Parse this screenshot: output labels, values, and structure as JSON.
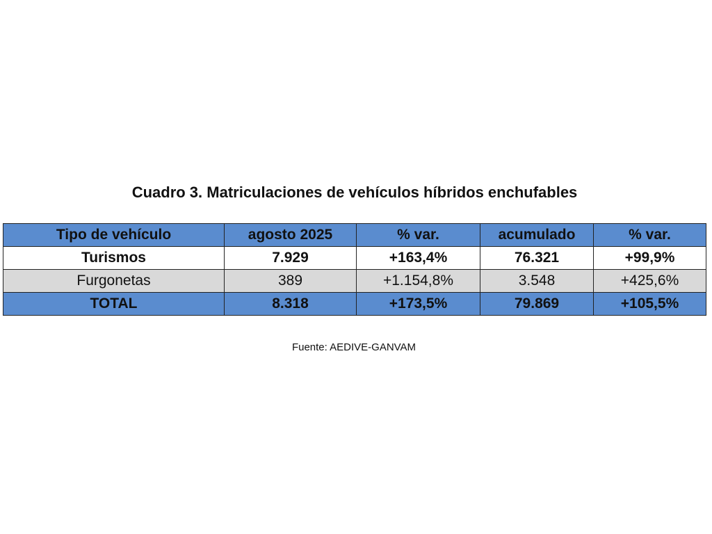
{
  "title": "Cuadro 3. Matriculaciones de vehículos híbridos enchufables",
  "table": {
    "header": [
      "Tipo de vehículo",
      "agosto 2025",
      "% var.",
      "acumulado",
      "% var."
    ],
    "rows": [
      [
        "Turismos",
        "7.929",
        "+163,4%",
        "76.321",
        "+99,9%"
      ],
      [
        "Furgonetas",
        "389",
        "+1.154,8%",
        "3.548",
        "+425,6%"
      ],
      [
        "TOTAL",
        "8.318",
        "+173,5%",
        "79.869",
        "+105,5%"
      ]
    ]
  },
  "source": "Fuente: AEDIVE-GANVAM"
}
